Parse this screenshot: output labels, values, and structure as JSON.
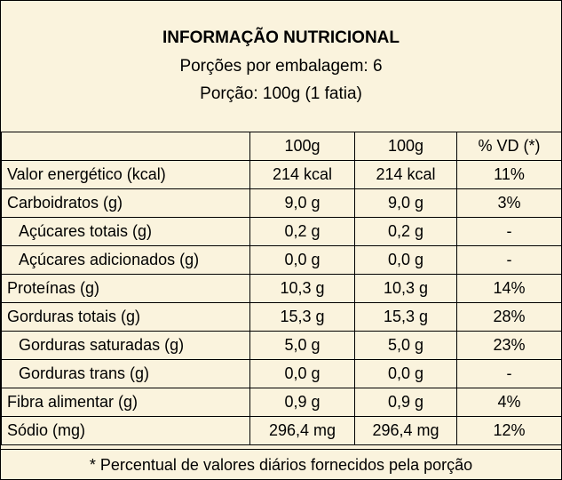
{
  "header": {
    "title": "INFORMAÇÃO NUTRICIONAL",
    "servings_per_package": "Porções por embalagem: 6",
    "serving_size": "Porção: 100g (1 fatia)"
  },
  "table": {
    "columns": [
      "",
      "100g",
      "100g",
      "% VD (*)"
    ],
    "rows": [
      {
        "label": "Valor energético (kcal)",
        "indent": false,
        "c1": "214 kcal",
        "c2": "214 kcal",
        "vd": "11%"
      },
      {
        "label": "Carboidratos (g)",
        "indent": false,
        "c1": "9,0 g",
        "c2": "9,0 g",
        "vd": "3%"
      },
      {
        "label": "Açúcares totais (g)",
        "indent": true,
        "c1": "0,2 g",
        "c2": "0,2 g",
        "vd": "-"
      },
      {
        "label": "Açúcares adicionados (g)",
        "indent": true,
        "c1": "0,0 g",
        "c2": "0,0 g",
        "vd": "-"
      },
      {
        "label": "Proteínas (g)",
        "indent": false,
        "c1": "10,3 g",
        "c2": "10,3 g",
        "vd": "14%"
      },
      {
        "label": "Gorduras totais (g)",
        "indent": false,
        "c1": "15,3 g",
        "c2": "15,3 g",
        "vd": "28%"
      },
      {
        "label": "Gorduras saturadas (g)",
        "indent": true,
        "c1": "5,0 g",
        "c2": "5,0 g",
        "vd": "23%"
      },
      {
        "label": "Gorduras trans (g)",
        "indent": true,
        "c1": "0,0 g",
        "c2": "0,0 g",
        "vd": "-"
      },
      {
        "label": "Fibra alimentar (g)",
        "indent": false,
        "c1": "0,9 g",
        "c2": "0,9 g",
        "vd": "4%"
      },
      {
        "label": "Sódio (mg)",
        "indent": false,
        "c1": "296,4 mg",
        "c2": "296,4 mg",
        "vd": "12%"
      }
    ]
  },
  "footer": {
    "note": "* Percentual de valores diários fornecidos pela porção"
  },
  "colors": {
    "background": "#FAF3DD",
    "border": "#000000",
    "text": "#000000"
  }
}
